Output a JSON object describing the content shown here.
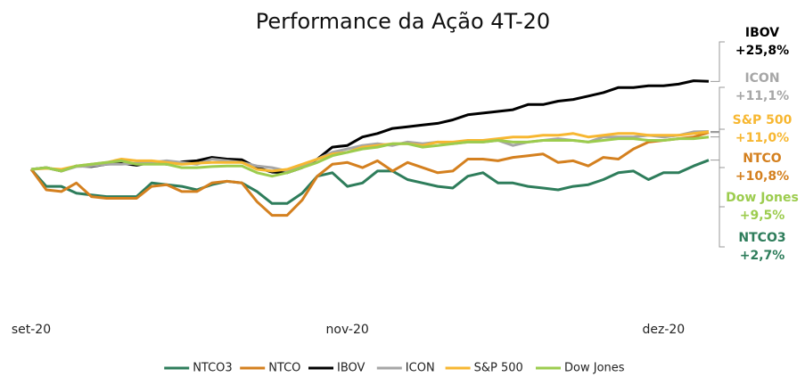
{
  "chart_data": {
    "type": "line",
    "title": "Performance da Ação 4T-20",
    "categories": [
      "set-20",
      null,
      null,
      null,
      null,
      null,
      null,
      null,
      null,
      null,
      null,
      null,
      null,
      null,
      null,
      null,
      null,
      null,
      null,
      null,
      null,
      "nov-20",
      null,
      null,
      null,
      null,
      null,
      null,
      null,
      null,
      null,
      null,
      null,
      null,
      null,
      null,
      null,
      null,
      null,
      null,
      null,
      null,
      "dez-20",
      null,
      null,
      null
    ],
    "ylim": [
      -40,
      40
    ],
    "series": [
      {
        "name": "NTCO3",
        "color": "#2e7d5b",
        "end_label": "+2,7%",
        "values": [
          0,
          -5,
          -5,
          -7,
          -7.5,
          -8,
          -8,
          -8,
          -4,
          -4.5,
          -5,
          -6,
          -4.5,
          -3.5,
          -4,
          -6.5,
          -10,
          -10,
          -7,
          -2,
          -1,
          -5,
          -4,
          -0.5,
          -0.5,
          -3,
          -4,
          -5,
          -5.5,
          -2,
          -1,
          -4,
          -4,
          -5,
          -5.5,
          -6,
          -5,
          -4.5,
          -3,
          -1,
          -0.5,
          -3,
          -1,
          -1,
          1,
          2.7
        ]
      },
      {
        "name": "NTCO",
        "color": "#d4801f",
        "end_label": "+10,8%",
        "values": [
          0,
          -6,
          -6.5,
          -4,
          -8,
          -8.5,
          -8.5,
          -8.5,
          -5,
          -4.5,
          -6.5,
          -6.5,
          -4,
          -3.5,
          -4,
          -9.5,
          -13.5,
          -13.5,
          -9,
          -2,
          1.5,
          2,
          0.5,
          2.5,
          -0.5,
          2,
          0.5,
          -1,
          -0.5,
          3,
          3,
          2.5,
          3.5,
          4,
          4.5,
          2,
          2.5,
          1,
          3.5,
          3,
          6,
          8,
          8.5,
          9,
          9.5,
          10.8
        ]
      },
      {
        "name": "IBOV",
        "color": "#000000",
        "end_label": "+25,8%",
        "values": [
          0,
          0.5,
          -0.5,
          1,
          0.8,
          1.5,
          1.8,
          1.2,
          2,
          1.5,
          2.2,
          2.5,
          3.5,
          3,
          2.8,
          0.5,
          -0.8,
          -1,
          0.5,
          3,
          6.5,
          7,
          9.5,
          10.5,
          12,
          12.5,
          13,
          13.5,
          14.5,
          16,
          16.5,
          17,
          17.5,
          19,
          19,
          20,
          20.5,
          21.5,
          22.5,
          24,
          24,
          24.5,
          24.5,
          25,
          26,
          25.8
        ]
      },
      {
        "name": "ICON",
        "color": "#a6a6a6",
        "end_label": "+11,1%",
        "values": [
          0,
          0.5,
          -0.5,
          0.8,
          1,
          1.5,
          1.5,
          1.8,
          2,
          2.5,
          2,
          1.5,
          3,
          2.5,
          2,
          1,
          0.5,
          -0.5,
          1,
          3,
          5,
          6,
          7,
          7.5,
          7,
          8,
          7.5,
          8,
          7.5,
          8,
          8,
          8.5,
          7,
          8,
          8.5,
          9,
          8.5,
          8,
          9.5,
          9.5,
          9.5,
          10,
          9.5,
          10,
          11,
          11.1
        ]
      },
      {
        "name": "S&P 500",
        "color": "#f7b731",
        "end_label": "+11,0%",
        "values": [
          0,
          0.3,
          0,
          1,
          1.5,
          2,
          3,
          2.5,
          2.5,
          2,
          1.5,
          1.8,
          2,
          2,
          2,
          0,
          -0.5,
          0,
          1.5,
          3,
          4.5,
          5,
          6.5,
          7,
          7.5,
          7.5,
          7,
          8,
          8,
          8.5,
          8.5,
          9,
          9.5,
          9.5,
          10,
          10,
          10.5,
          9.5,
          10,
          10.5,
          10.5,
          10,
          10,
          10,
          10.5,
          11
        ]
      },
      {
        "name": "Dow Jones",
        "color": "#9ccc4e",
        "end_label": "+9,5%",
        "values": [
          0,
          0.5,
          -0.5,
          1,
          1.5,
          2,
          2.5,
          1.5,
          1.5,
          1.5,
          0.5,
          0.5,
          0.8,
          1,
          1,
          -1,
          -2,
          -1,
          0.5,
          2,
          4,
          5,
          6,
          6.5,
          7.5,
          7.5,
          6.5,
          7,
          7.5,
          8,
          8,
          8.5,
          8,
          8,
          8.5,
          8.5,
          8.5,
          8,
          8.5,
          9,
          9,
          8.5,
          8.5,
          9,
          9,
          9.5
        ]
      }
    ]
  }
}
